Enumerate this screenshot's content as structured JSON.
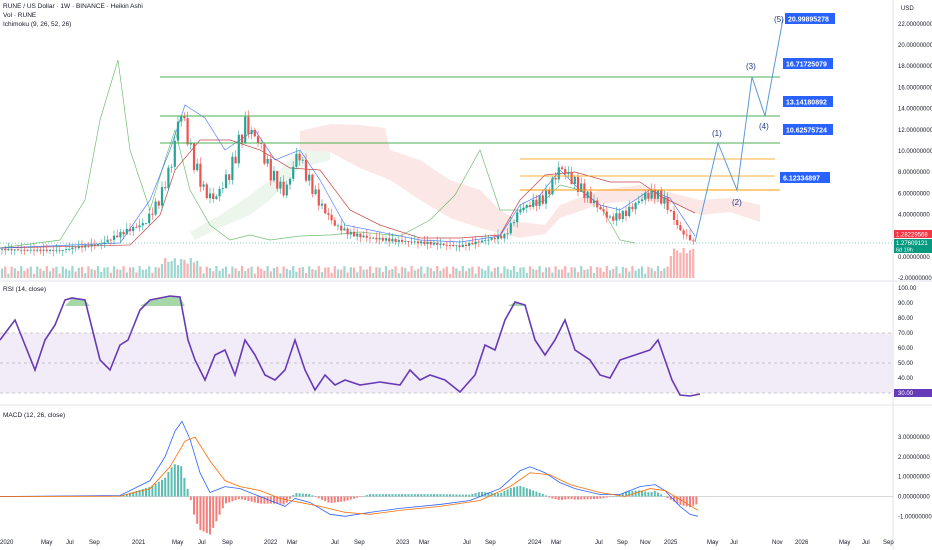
{
  "header": {
    "symbol_line": "RUNE / US Dollar · 1W · BINANCE · Heikin Ashi",
    "volume_line": "Vol · RUNE",
    "ichimoku_line": "Ichimoku (9, 26, 52, 26)"
  },
  "rsi_label": "RSI (14, close)",
  "macd_label": "MACD (12, 26, close)",
  "colors": {
    "bull": "#26a69a",
    "bear": "#ef5350",
    "target_box": "#2962ff",
    "target_line": "#4caf50",
    "fib_orange": "#ff9800",
    "projection": "#5b9bd5",
    "rsi_line": "#673ab7",
    "rsi_band": "#ede7f6",
    "macd_line": "#2962ff",
    "signal_line": "#ff6d00",
    "price_label_red": "#f23645",
    "price_label_green": "#089981"
  },
  "chart_data": [
    {
      "type": "line",
      "name": "price",
      "currency": "USD",
      "y_axis_ticks": [
        "22.00000000",
        "20.00000000",
        "18.00000000",
        "16.00000000",
        "14.00000000",
        "12.00000000",
        "10.00000000",
        "8.00000000",
        "6.00000000",
        "4.00000000",
        "2.00000000",
        "0.00000000",
        "-2.00000000"
      ],
      "ylim": [
        -2,
        23
      ],
      "x_labels": [
        "2020",
        "May",
        "Jul",
        "Sep",
        "2021",
        "May",
        "Jul",
        "Sep",
        "2022",
        "Mar",
        "Jul",
        "Sep",
        "2023",
        "Mar",
        "Jul",
        "Sep",
        "2024",
        "Mar",
        "Jul",
        "Sep",
        "Nov",
        "2025",
        "May",
        "Jul",
        "Nov",
        "2026",
        "May",
        "Jul",
        "Sep"
      ],
      "targets": [
        {
          "label": "(5)",
          "value": "20.99895278"
        },
        {
          "label": "(3)",
          "value": "16.71725079"
        },
        {
          "label": "(4)",
          "value": "13.14180892"
        },
        {
          "label": "(1)",
          "value": "10.62575724"
        },
        {
          "label": "(2)",
          "value": "6.12334897"
        }
      ],
      "current_price": "1.28229568",
      "second_price": "1.27609121",
      "countdown": "6d 19h"
    },
    {
      "type": "line",
      "name": "RSI",
      "y_axis_ticks": [
        "100.00",
        "90.00",
        "80.00",
        "70.00",
        "60.00",
        "50.00",
        "40.00",
        "30.00"
      ],
      "ylim": [
        25,
        100
      ],
      "band": [
        30,
        70
      ],
      "current": "30.00"
    },
    {
      "type": "line",
      "name": "MACD",
      "y_axis_ticks": [
        "3.00000000",
        "2.00000000",
        "1.00000000",
        "0.00000000",
        "-1.00000000"
      ],
      "ylim": [
        -1.3,
        4
      ]
    }
  ]
}
